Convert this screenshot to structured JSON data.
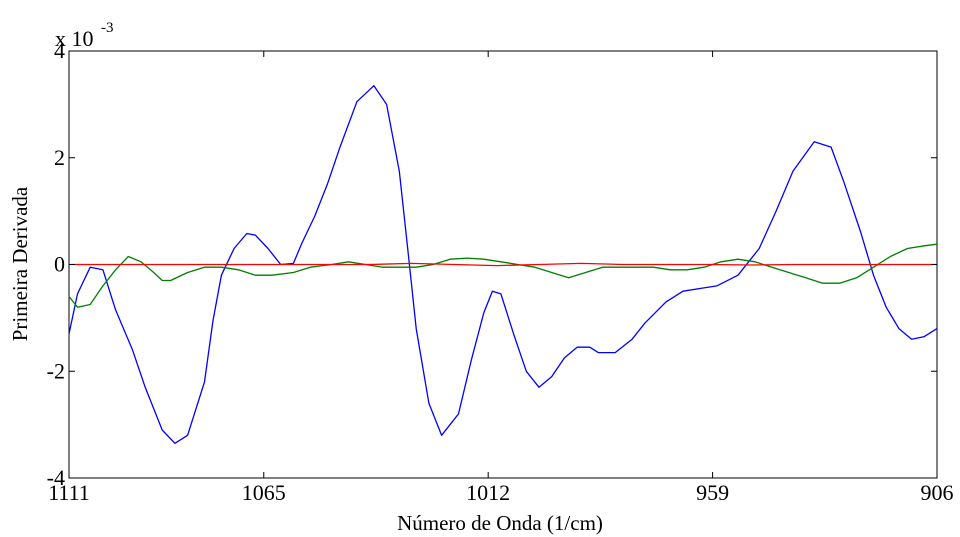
{
  "chart_data": {
    "type": "line",
    "xlabel": "Número de Onda (1/cm)",
    "ylabel": "Primeira Derivada",
    "exponent_label": {
      "base": "x 10",
      "exp": "-3"
    },
    "x_reversed": true,
    "xlim": [
      1111,
      906
    ],
    "ylim": [
      -4,
      4
    ],
    "xticks": [
      {
        "value": 1111,
        "label": "1111"
      },
      {
        "value": 1065,
        "label": "1065"
      },
      {
        "value": 1012,
        "label": "1012"
      },
      {
        "value": 959,
        "label": "959"
      },
      {
        "value": 906,
        "label": "906"
      }
    ],
    "yticks": [
      {
        "value": -4,
        "label": "-4"
      },
      {
        "value": -2,
        "label": "-2"
      },
      {
        "value": 0,
        "label": "0"
      },
      {
        "value": 2,
        "label": "2"
      },
      {
        "value": 4,
        "label": "4"
      }
    ],
    "grid": false,
    "series": [
      {
        "color": "#0000ff",
        "x": [
          1111,
          1109,
          1106,
          1103,
          1100,
          1096,
          1093,
          1089,
          1086,
          1083,
          1079,
          1077,
          1075,
          1072,
          1069,
          1067,
          1064,
          1061,
          1058,
          1056,
          1053,
          1050,
          1047,
          1043,
          1039,
          1036,
          1033,
          1031,
          1029,
          1026,
          1023,
          1019,
          1016,
          1013,
          1011,
          1009,
          1006,
          1003,
          1000,
          997,
          994,
          991,
          988,
          986,
          982,
          978,
          975,
          970,
          966,
          962,
          958,
          953,
          948,
          944,
          940,
          935,
          931,
          928,
          924,
          921,
          918,
          915,
          912,
          909,
          906
        ],
        "y": [
          -1.3,
          -0.55,
          -0.05,
          -0.1,
          -0.85,
          -1.6,
          -2.3,
          -3.1,
          -3.35,
          -3.2,
          -2.2,
          -1.05,
          -0.2,
          0.3,
          0.58,
          0.55,
          0.3,
          0.0,
          0.02,
          0.4,
          0.9,
          1.5,
          2.2,
          3.05,
          3.35,
          3.0,
          1.75,
          0.3,
          -1.2,
          -2.6,
          -3.2,
          -2.8,
          -1.8,
          -0.9,
          -0.5,
          -0.55,
          -1.3,
          -2.0,
          -2.3,
          -2.1,
          -1.75,
          -1.55,
          -1.55,
          -1.65,
          -1.65,
          -1.4,
          -1.1,
          -0.7,
          -0.5,
          -0.45,
          -0.4,
          -0.2,
          0.3,
          1.0,
          1.75,
          2.3,
          2.2,
          1.55,
          0.6,
          -0.2,
          -0.8,
          -1.2,
          -1.4,
          -1.35,
          -1.2
        ]
      },
      {
        "color": "#007f00",
        "x": [
          1111,
          1109,
          1106,
          1103,
          1100,
          1097,
          1094,
          1091,
          1089,
          1087,
          1083,
          1079,
          1075,
          1071,
          1067,
          1063,
          1058,
          1054,
          1049,
          1045,
          1041,
          1037,
          1033,
          1029,
          1025,
          1021,
          1017,
          1013,
          1009,
          1005,
          1001,
          997,
          993,
          989,
          985,
          981,
          977,
          973,
          969,
          965,
          961,
          957,
          953,
          949,
          945,
          941,
          937,
          933,
          929,
          925,
          921,
          917,
          913,
          909,
          906
        ],
        "y": [
          -0.6,
          -0.8,
          -0.75,
          -0.4,
          -0.1,
          0.15,
          0.05,
          -0.15,
          -0.3,
          -0.3,
          -0.15,
          -0.05,
          -0.05,
          -0.1,
          -0.2,
          -0.2,
          -0.15,
          -0.05,
          0.0,
          0.05,
          0.0,
          -0.05,
          -0.05,
          -0.05,
          0.0,
          0.1,
          0.12,
          0.1,
          0.05,
          0.0,
          -0.05,
          -0.15,
          -0.25,
          -0.15,
          -0.05,
          -0.05,
          -0.05,
          -0.05,
          -0.1,
          -0.1,
          -0.05,
          0.05,
          0.1,
          0.05,
          -0.05,
          -0.15,
          -0.25,
          -0.35,
          -0.35,
          -0.25,
          -0.05,
          0.15,
          0.3,
          0.35,
          0.38
        ]
      },
      {
        "color": "#ff0000",
        "x": [
          1111,
          1100,
          1090,
          1080,
          1070,
          1060,
          1050,
          1040,
          1030,
          1020,
          1010,
          1000,
          990,
          980,
          970,
          960,
          950,
          940,
          930,
          920,
          906
        ],
        "y": [
          0.0,
          0.0,
          0.0,
          0.0,
          0.0,
          0.0,
          0.0,
          0.0,
          0.02,
          0.0,
          -0.02,
          0.0,
          0.02,
          0.0,
          0.0,
          0.0,
          -0.01,
          0.0,
          0.0,
          0.0,
          0.0
        ]
      }
    ]
  }
}
